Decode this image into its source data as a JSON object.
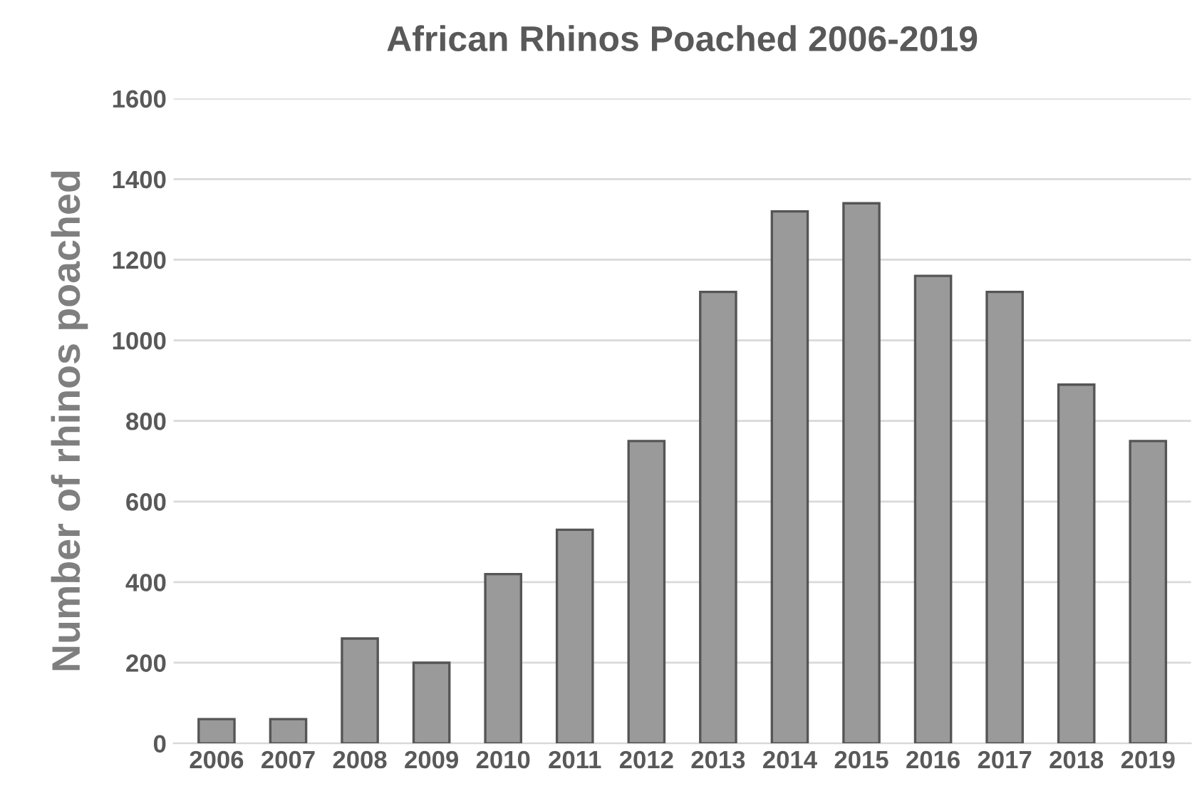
{
  "chart_data": {
    "type": "bar",
    "title": "African Rhinos Poached 2006-2019",
    "ylabel": "Number of rhinos poached",
    "categories": [
      "2006",
      "2007",
      "2008",
      "2009",
      "2010",
      "2011",
      "2012",
      "2013",
      "2014",
      "2015",
      "2016",
      "2017",
      "2018",
      "2019"
    ],
    "values": [
      60,
      60,
      260,
      200,
      420,
      530,
      750,
      1120,
      1320,
      1340,
      1160,
      1120,
      890,
      750
    ],
    "color": "#9a9a9a",
    "ylim": [
      0,
      1600
    ],
    "yticks": [
      0,
      200,
      400,
      600,
      800,
      1000,
      1200,
      1400,
      1600
    ],
    "grid": "y"
  }
}
